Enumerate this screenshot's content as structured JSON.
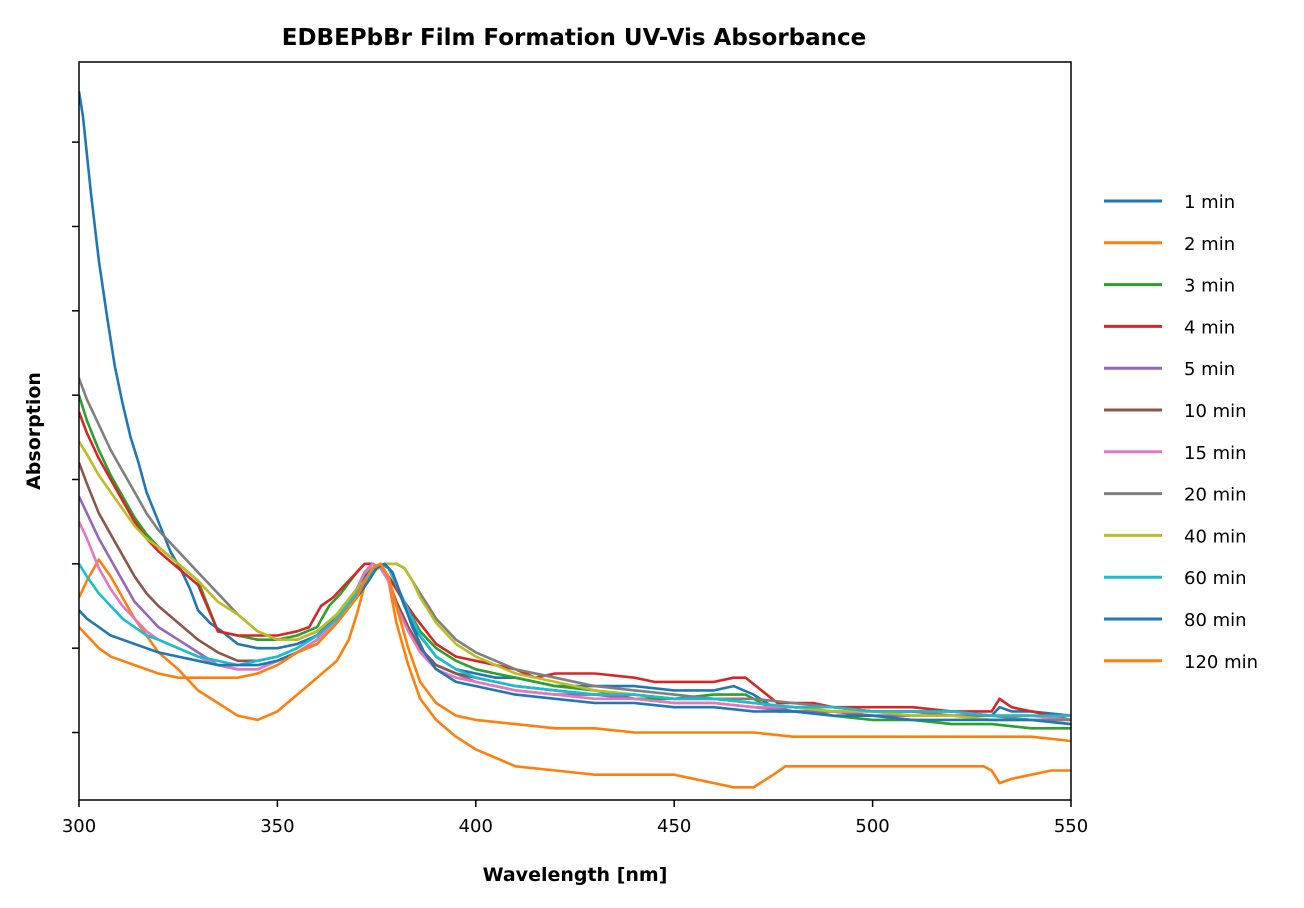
{
  "chart_data": {
    "type": "line",
    "title": "EDBEPbBr Film Formation UV-Vis Absorbance",
    "xlabel": "Wavelength [nm]",
    "ylabel": "Absorption",
    "xlim": [
      300,
      550
    ],
    "ylim": [
      0,
      1.75
    ],
    "xticks": [
      300,
      350,
      400,
      450,
      500,
      550
    ],
    "xtick_labels": [
      "300",
      "350",
      "400",
      "450",
      "500",
      "550"
    ],
    "yticks": [
      0.16,
      0.36,
      0.56,
      0.76,
      0.96,
      1.16,
      1.36,
      1.56
    ],
    "ytick_labels_visible": false,
    "grid": false,
    "legend_position": "outside-right",
    "series": [
      {
        "name": "1 min",
        "color": "#1f77b4",
        "x": [
          300,
          301,
          303,
          305,
          307,
          309,
          311,
          313,
          315,
          317,
          320,
          323,
          326,
          328,
          330,
          333,
          336,
          340,
          345,
          350,
          355,
          360,
          365,
          370,
          372,
          374,
          376,
          378,
          380,
          382,
          385,
          390,
          395,
          400,
          405,
          410,
          415,
          420,
          430,
          440,
          450,
          460,
          465,
          470,
          475,
          480,
          490,
          500,
          510,
          520,
          530,
          532,
          535,
          540,
          550
        ],
        "y": [
          1.68,
          1.62,
          1.44,
          1.28,
          1.15,
          1.03,
          0.94,
          0.86,
          0.8,
          0.73,
          0.66,
          0.59,
          0.54,
          0.5,
          0.45,
          0.42,
          0.4,
          0.37,
          0.36,
          0.36,
          0.37,
          0.39,
          0.44,
          0.5,
          0.53,
          0.55,
          0.56,
          0.55,
          0.51,
          0.46,
          0.4,
          0.34,
          0.31,
          0.3,
          0.29,
          0.29,
          0.28,
          0.27,
          0.27,
          0.27,
          0.26,
          0.26,
          0.27,
          0.25,
          0.22,
          0.21,
          0.21,
          0.2,
          0.2,
          0.2,
          0.2,
          0.22,
          0.21,
          0.21,
          0.2
        ]
      },
      {
        "name": "2 min",
        "color": "#ff7f0e",
        "x": [
          300,
          302,
          305,
          308,
          311,
          314,
          317,
          320,
          325,
          330,
          335,
          340,
          345,
          350,
          355,
          360,
          365,
          368,
          370,
          372,
          374,
          376,
          378,
          380,
          383,
          386,
          390,
          395,
          400,
          405,
          410,
          420,
          430,
          440,
          450,
          460,
          465,
          470,
          475,
          478,
          485,
          490,
          500,
          510,
          520,
          528,
          530,
          532,
          535,
          540,
          545,
          550
        ],
        "y": [
          0.48,
          0.52,
          0.57,
          0.53,
          0.48,
          0.43,
          0.39,
          0.35,
          0.31,
          0.26,
          0.23,
          0.2,
          0.19,
          0.21,
          0.25,
          0.29,
          0.33,
          0.38,
          0.44,
          0.51,
          0.55,
          0.56,
          0.52,
          0.42,
          0.32,
          0.24,
          0.19,
          0.15,
          0.12,
          0.1,
          0.08,
          0.07,
          0.06,
          0.06,
          0.06,
          0.04,
          0.03,
          0.03,
          0.06,
          0.08,
          0.08,
          0.08,
          0.08,
          0.08,
          0.08,
          0.08,
          0.07,
          0.04,
          0.05,
          0.06,
          0.07,
          0.07
        ]
      },
      {
        "name": "3 min",
        "color": "#2ca02c",
        "x": [
          300,
          302,
          305,
          308,
          311,
          314,
          317,
          320,
          325,
          330,
          335,
          340,
          345,
          350,
          355,
          360,
          363,
          366,
          370,
          372,
          374,
          376,
          378,
          380,
          383,
          386,
          390,
          395,
          400,
          405,
          410,
          415,
          420,
          430,
          440,
          450,
          460,
          465,
          468,
          472,
          476,
          480,
          485,
          490,
          500,
          510,
          520,
          530,
          540,
          550
        ],
        "y": [
          0.96,
          0.9,
          0.83,
          0.77,
          0.72,
          0.67,
          0.63,
          0.6,
          0.56,
          0.52,
          0.4,
          0.39,
          0.38,
          0.38,
          0.39,
          0.41,
          0.46,
          0.49,
          0.54,
          0.56,
          0.56,
          0.55,
          0.53,
          0.5,
          0.45,
          0.4,
          0.36,
          0.33,
          0.31,
          0.3,
          0.29,
          0.28,
          0.27,
          0.26,
          0.24,
          0.24,
          0.25,
          0.25,
          0.25,
          0.23,
          0.21,
          0.21,
          0.21,
          0.2,
          0.19,
          0.19,
          0.18,
          0.18,
          0.17,
          0.17
        ]
      },
      {
        "name": "4 min",
        "color": "#d62728",
        "x": [
          300,
          302,
          305,
          308,
          311,
          314,
          317,
          320,
          325,
          330,
          335,
          340,
          345,
          350,
          355,
          358,
          361,
          364,
          367,
          370,
          372,
          374,
          376,
          378,
          380,
          382,
          385,
          390,
          395,
          400,
          405,
          410,
          415,
          420,
          425,
          430,
          440,
          445,
          450,
          460,
          465,
          468,
          472,
          476,
          480,
          485,
          490,
          500,
          510,
          520,
          525,
          530,
          532,
          535,
          540,
          545,
          550
        ],
        "y": [
          0.92,
          0.87,
          0.81,
          0.76,
          0.71,
          0.66,
          0.62,
          0.59,
          0.55,
          0.51,
          0.4,
          0.39,
          0.39,
          0.39,
          0.4,
          0.41,
          0.46,
          0.48,
          0.51,
          0.54,
          0.56,
          0.56,
          0.55,
          0.53,
          0.5,
          0.47,
          0.43,
          0.37,
          0.34,
          0.33,
          0.32,
          0.31,
          0.29,
          0.3,
          0.3,
          0.3,
          0.29,
          0.28,
          0.28,
          0.28,
          0.29,
          0.29,
          0.26,
          0.23,
          0.23,
          0.23,
          0.22,
          0.22,
          0.22,
          0.21,
          0.21,
          0.21,
          0.24,
          0.22,
          0.21,
          0.2,
          0.19
        ]
      },
      {
        "name": "5 min",
        "color": "#9467bd",
        "x": [
          300,
          302,
          305,
          308,
          311,
          314,
          317,
          320,
          325,
          330,
          335,
          340,
          345,
          350,
          355,
          360,
          365,
          370,
          372,
          374,
          376,
          378,
          380,
          383,
          386,
          390,
          395,
          400,
          405,
          410,
          420,
          430,
          440,
          450,
          460,
          470,
          480,
          490,
          500,
          510,
          520,
          530,
          540,
          550
        ],
        "y": [
          0.72,
          0.68,
          0.62,
          0.57,
          0.52,
          0.47,
          0.44,
          0.41,
          0.38,
          0.35,
          0.32,
          0.31,
          0.31,
          0.33,
          0.35,
          0.38,
          0.43,
          0.5,
          0.54,
          0.56,
          0.55,
          0.52,
          0.47,
          0.41,
          0.36,
          0.32,
          0.3,
          0.28,
          0.27,
          0.26,
          0.25,
          0.25,
          0.24,
          0.23,
          0.23,
          0.22,
          0.21,
          0.21,
          0.2,
          0.2,
          0.2,
          0.2,
          0.2,
          0.19
        ]
      },
      {
        "name": "10 min",
        "color": "#8c564b",
        "x": [
          300,
          302,
          305,
          308,
          311,
          314,
          317,
          320,
          325,
          330,
          335,
          340,
          345,
          350,
          355,
          360,
          365,
          370,
          372,
          374,
          376,
          378,
          380,
          383,
          386,
          390,
          395,
          400,
          405,
          410,
          420,
          430,
          440,
          450,
          460,
          470,
          480,
          490,
          500,
          510,
          520,
          530,
          540,
          550
        ],
        "y": [
          0.8,
          0.75,
          0.68,
          0.63,
          0.58,
          0.53,
          0.49,
          0.46,
          0.42,
          0.38,
          0.35,
          0.33,
          0.33,
          0.34,
          0.36,
          0.39,
          0.44,
          0.5,
          0.54,
          0.56,
          0.55,
          0.52,
          0.47,
          0.41,
          0.36,
          0.32,
          0.3,
          0.29,
          0.28,
          0.27,
          0.26,
          0.25,
          0.25,
          0.24,
          0.24,
          0.23,
          0.22,
          0.22,
          0.21,
          0.21,
          0.21,
          0.2,
          0.2,
          0.2
        ]
      },
      {
        "name": "15 min",
        "color": "#e377c2",
        "x": [
          300,
          302,
          305,
          308,
          311,
          314,
          317,
          320,
          325,
          330,
          335,
          340,
          345,
          350,
          355,
          360,
          365,
          370,
          372,
          374,
          376,
          378,
          380,
          383,
          386,
          390,
          395,
          400,
          405,
          410,
          420,
          430,
          440,
          450,
          460,
          470,
          480,
          490,
          500,
          510,
          520,
          530,
          540,
          550
        ],
        "y": [
          0.66,
          0.62,
          0.55,
          0.5,
          0.46,
          0.43,
          0.4,
          0.38,
          0.36,
          0.34,
          0.32,
          0.31,
          0.31,
          0.33,
          0.35,
          0.38,
          0.43,
          0.5,
          0.54,
          0.56,
          0.55,
          0.52,
          0.46,
          0.4,
          0.35,
          0.31,
          0.29,
          0.28,
          0.27,
          0.26,
          0.25,
          0.24,
          0.24,
          0.23,
          0.23,
          0.22,
          0.22,
          0.21,
          0.21,
          0.21,
          0.2,
          0.2,
          0.2,
          0.19
        ]
      },
      {
        "name": "20 min",
        "color": "#7f7f7f",
        "x": [
          300,
          302,
          305,
          308,
          311,
          314,
          317,
          320,
          325,
          330,
          335,
          340,
          345,
          350,
          355,
          360,
          365,
          370,
          374,
          377,
          380,
          382,
          384,
          386,
          388,
          390,
          395,
          400,
          405,
          410,
          420,
          430,
          440,
          450,
          460,
          470,
          480,
          490,
          500,
          510,
          520,
          530,
          540,
          550
        ],
        "y": [
          1.0,
          0.95,
          0.89,
          0.83,
          0.78,
          0.73,
          0.68,
          0.64,
          0.59,
          0.54,
          0.49,
          0.44,
          0.4,
          0.38,
          0.38,
          0.4,
          0.44,
          0.5,
          0.54,
          0.56,
          0.56,
          0.55,
          0.52,
          0.49,
          0.46,
          0.43,
          0.38,
          0.35,
          0.33,
          0.31,
          0.29,
          0.27,
          0.26,
          0.25,
          0.24,
          0.24,
          0.23,
          0.22,
          0.21,
          0.21,
          0.2,
          0.2,
          0.19,
          0.19
        ]
      },
      {
        "name": "40 min",
        "color": "#bcbd22",
        "x": [
          300,
          302,
          305,
          308,
          311,
          314,
          317,
          320,
          325,
          330,
          335,
          340,
          345,
          350,
          355,
          360,
          365,
          370,
          374,
          377,
          380,
          382,
          384,
          386,
          388,
          390,
          395,
          400,
          405,
          410,
          420,
          430,
          440,
          450,
          460,
          470,
          480,
          490,
          500,
          510,
          520,
          530,
          540,
          550
        ],
        "y": [
          0.85,
          0.82,
          0.77,
          0.73,
          0.69,
          0.65,
          0.62,
          0.6,
          0.56,
          0.52,
          0.47,
          0.44,
          0.4,
          0.38,
          0.38,
          0.4,
          0.44,
          0.5,
          0.54,
          0.56,
          0.56,
          0.55,
          0.52,
          0.48,
          0.45,
          0.42,
          0.37,
          0.34,
          0.32,
          0.3,
          0.28,
          0.26,
          0.25,
          0.24,
          0.24,
          0.23,
          0.22,
          0.21,
          0.21,
          0.2,
          0.2,
          0.19,
          0.19,
          0.18
        ]
      },
      {
        "name": "60 min",
        "color": "#17becf",
        "x": [
          300,
          302,
          305,
          308,
          311,
          314,
          317,
          320,
          325,
          330,
          335,
          340,
          345,
          350,
          355,
          360,
          365,
          370,
          372,
          374,
          376,
          378,
          380,
          383,
          386,
          390,
          395,
          400,
          405,
          410,
          420,
          430,
          440,
          450,
          460,
          470,
          480,
          490,
          500,
          510,
          520,
          530,
          540,
          550
        ],
        "y": [
          0.56,
          0.53,
          0.49,
          0.46,
          0.43,
          0.41,
          0.39,
          0.38,
          0.36,
          0.34,
          0.33,
          0.32,
          0.33,
          0.34,
          0.36,
          0.39,
          0.43,
          0.49,
          0.52,
          0.54,
          0.56,
          0.55,
          0.51,
          0.45,
          0.39,
          0.34,
          0.31,
          0.29,
          0.28,
          0.27,
          0.26,
          0.25,
          0.25,
          0.24,
          0.24,
          0.23,
          0.22,
          0.22,
          0.21,
          0.21,
          0.21,
          0.2,
          0.2,
          0.2
        ]
      },
      {
        "name": "80 min",
        "color": "#1f77b4",
        "x": [
          300,
          302,
          305,
          308,
          311,
          314,
          317,
          320,
          325,
          330,
          335,
          340,
          345,
          350,
          355,
          360,
          365,
          370,
          373,
          375,
          377,
          379,
          381,
          384,
          387,
          390,
          395,
          400,
          405,
          410,
          420,
          430,
          440,
          450,
          460,
          470,
          480,
          490,
          500,
          510,
          520,
          530,
          540,
          550
        ],
        "y": [
          0.45,
          0.43,
          0.41,
          0.39,
          0.38,
          0.37,
          0.36,
          0.35,
          0.34,
          0.33,
          0.32,
          0.32,
          0.32,
          0.33,
          0.35,
          0.37,
          0.42,
          0.48,
          0.52,
          0.55,
          0.56,
          0.54,
          0.49,
          0.41,
          0.35,
          0.31,
          0.28,
          0.27,
          0.26,
          0.25,
          0.24,
          0.23,
          0.23,
          0.22,
          0.22,
          0.21,
          0.21,
          0.2,
          0.2,
          0.19,
          0.19,
          0.19,
          0.19,
          0.18
        ]
      },
      {
        "name": "120 min",
        "color": "#ff7f0e",
        "x": [
          300,
          302,
          305,
          308,
          311,
          314,
          317,
          320,
          325,
          330,
          335,
          340,
          345,
          350,
          355,
          360,
          365,
          370,
          372,
          374,
          376,
          378,
          380,
          383,
          386,
          390,
          395,
          400,
          410,
          420,
          430,
          440,
          450,
          460,
          470,
          480,
          490,
          500,
          510,
          520,
          530,
          540,
          550
        ],
        "y": [
          0.41,
          0.39,
          0.36,
          0.34,
          0.33,
          0.32,
          0.31,
          0.3,
          0.29,
          0.29,
          0.29,
          0.29,
          0.3,
          0.32,
          0.35,
          0.37,
          0.42,
          0.48,
          0.52,
          0.55,
          0.56,
          0.53,
          0.46,
          0.36,
          0.28,
          0.23,
          0.2,
          0.19,
          0.18,
          0.17,
          0.17,
          0.16,
          0.16,
          0.16,
          0.16,
          0.15,
          0.15,
          0.15,
          0.15,
          0.15,
          0.15,
          0.15,
          0.14
        ]
      }
    ]
  }
}
